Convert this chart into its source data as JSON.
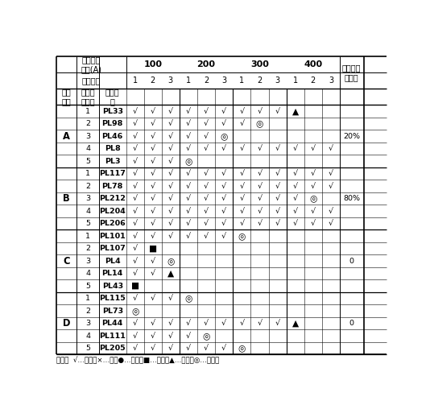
{
  "groups": [
    {
      "label": "A",
      "rows": [
        {
          "num": "1",
          "code": "PL33",
          "vals": [
            "√",
            "√",
            "√",
            "√",
            "√",
            "√",
            "√",
            "√",
            "√",
            "▲",
            "",
            ""
          ]
        },
        {
          "num": "2",
          "code": "PL98",
          "vals": [
            "√",
            "√",
            "√",
            "√",
            "√",
            "√",
            "√",
            "◎",
            "",
            "",
            "",
            ""
          ]
        },
        {
          "num": "3",
          "code": "PL46",
          "vals": [
            "√",
            "√",
            "√",
            "√",
            "√",
            "◎",
            "",
            "",
            "",
            "",
            "",
            ""
          ]
        },
        {
          "num": "4",
          "code": "PL8",
          "vals": [
            "√",
            "√",
            "√",
            "√",
            "√",
            "√",
            "√",
            "√",
            "√",
            "√",
            "√",
            "√"
          ]
        },
        {
          "num": "5",
          "code": "PL3",
          "vals": [
            "√",
            "√",
            "√",
            "◎",
            "",
            "",
            "",
            "",
            "",
            "",
            "",
            ""
          ]
        }
      ],
      "pass_rate": "20%"
    },
    {
      "label": "B",
      "rows": [
        {
          "num": "1",
          "code": "PL117",
          "vals": [
            "√",
            "√",
            "√",
            "√",
            "√",
            "√",
            "√",
            "√",
            "√",
            "√",
            "√",
            "√"
          ]
        },
        {
          "num": "2",
          "code": "PL78",
          "vals": [
            "√",
            "√",
            "√",
            "√",
            "√",
            "√",
            "√",
            "√",
            "√",
            "√",
            "√",
            "√"
          ]
        },
        {
          "num": "3",
          "code": "PL212",
          "vals": [
            "√",
            "√",
            "√",
            "√",
            "√",
            "√",
            "√",
            "√",
            "√",
            "√",
            "◎",
            ""
          ]
        },
        {
          "num": "4",
          "code": "PL204",
          "vals": [
            "√",
            "√",
            "√",
            "√",
            "√",
            "√",
            "√",
            "√",
            "√",
            "√",
            "√",
            "√"
          ]
        },
        {
          "num": "5",
          "code": "PL206",
          "vals": [
            "√",
            "√",
            "√",
            "√",
            "√",
            "√",
            "√",
            "√",
            "√",
            "√",
            "√",
            "√"
          ]
        }
      ],
      "pass_rate": "80%"
    },
    {
      "label": "C",
      "rows": [
        {
          "num": "1",
          "code": "PL101",
          "vals": [
            "√",
            "√",
            "√",
            "√",
            "√",
            "√",
            "◎",
            "",
            "",
            "",
            "",
            ""
          ]
        },
        {
          "num": "2",
          "code": "PL107",
          "vals": [
            "√",
            "■",
            "",
            "",
            "",
            "",
            "",
            "",
            "",
            "",
            "",
            ""
          ]
        },
        {
          "num": "3",
          "code": "PL4",
          "vals": [
            "√",
            "√",
            "◎",
            "",
            "",
            "",
            "",
            "",
            "",
            "",
            "",
            ""
          ]
        },
        {
          "num": "4",
          "code": "PL14",
          "vals": [
            "√",
            "√",
            "▲",
            "",
            "",
            "",
            "",
            "",
            "",
            "",
            "",
            ""
          ]
        },
        {
          "num": "5",
          "code": "PL43",
          "vals": [
            "■",
            "",
            "",
            "",
            "",
            "",
            "",
            "",
            "",
            "",
            "",
            ""
          ]
        }
      ],
      "pass_rate": "0"
    },
    {
      "label": "D",
      "rows": [
        {
          "num": "1",
          "code": "PL115",
          "vals": [
            "√",
            "√",
            "√",
            "◎",
            "",
            "",
            "",
            "",
            "",
            "",
            "",
            ""
          ]
        },
        {
          "num": "2",
          "code": "PL73",
          "vals": [
            "◎",
            "",
            "",
            "",
            "",
            "",
            "",
            "",
            "",
            "",
            "",
            ""
          ]
        },
        {
          "num": "3",
          "code": "PL44",
          "vals": [
            "√",
            "√",
            "√",
            "√",
            "√",
            "√",
            "√",
            "√",
            "√",
            "▲",
            "",
            ""
          ]
        },
        {
          "num": "4",
          "code": "PL111",
          "vals": [
            "√",
            "√",
            "√",
            "√",
            "◎",
            "",
            "",
            "",
            "",
            "",
            "",
            ""
          ]
        },
        {
          "num": "5",
          "code": "PL205",
          "vals": [
            "√",
            "√",
            "√",
            "√",
            "√",
            "√",
            "◎",
            "",
            "",
            "",
            "",
            ""
          ]
        }
      ],
      "pass_rate": "0"
    }
  ],
  "header_line1_left": "方波电流",
  "header_line2_left": "幅值(A)",
  "header_line3_left": "方波次数",
  "amplitude_labels": [
    "100",
    "200",
    "300",
    "400"
  ],
  "sub_labels": [
    "1",
    "2",
    "3"
  ],
  "pass_rate_header": "方波筛选\n通过率",
  "col0_header": "配方\n编号",
  "col1_header": "测试样\n品数量",
  "col2_header": "编号试\n品",
  "footnote": "备注：  √…通过；×…否；●…破裂；■…裂纹；▲…闪络；◎…穿孔。",
  "background_color": "#ffffff",
  "text_color": "#000000",
  "line_color": "#000000"
}
